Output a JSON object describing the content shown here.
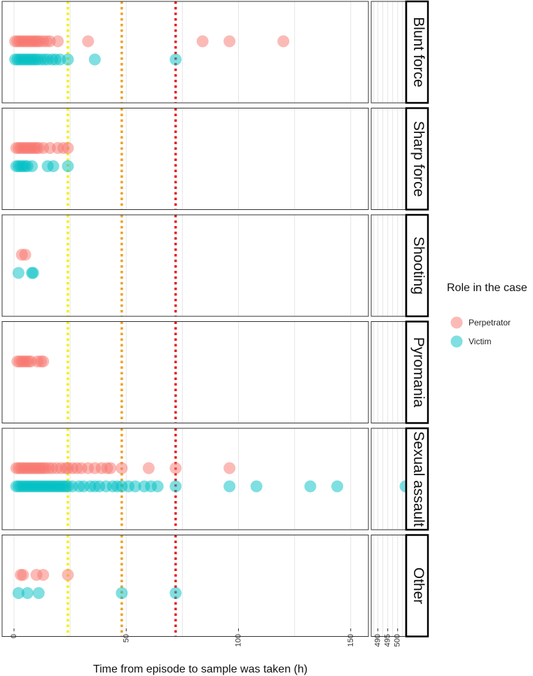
{
  "chart_data": {
    "type": "scatter",
    "xlabel": "Time from episode to sample was taken (h)",
    "ylabel": "",
    "xlim": [
      0,
      158
    ],
    "xlim_right": [
      487,
      504
    ],
    "xticks": [
      0,
      50,
      100,
      150
    ],
    "xticks_right": [
      490,
      495,
      500
    ],
    "vlines": [
      {
        "x": 24,
        "color": "#f5f000"
      },
      {
        "x": 48,
        "color": "#f0a020"
      },
      {
        "x": 72,
        "color": "#e41a1c"
      }
    ],
    "grid": true,
    "legend": {
      "title": "Role in the case",
      "position": "right",
      "entries": [
        {
          "name": "Perpetrator",
          "color": "#f8766d"
        },
        {
          "name": "Victim",
          "color": "#00bfc4"
        }
      ]
    },
    "facets": [
      {
        "label": "Blunt force",
        "series": [
          {
            "name": "Perpetrator",
            "x": [
              0.5,
              1.5,
              2.5,
              3.5,
              4.5,
              5.5,
              6.5,
              7.5,
              8.5,
              9.5,
              10.5,
              11.5,
              13,
              14.5,
              16,
              19.5,
              33,
              84,
              96,
              120
            ]
          },
          {
            "name": "Victim",
            "x": [
              0.5,
              1.5,
              2.5,
              3.5,
              4.5,
              5.5,
              6.5,
              7.5,
              8.5,
              9.5,
              10.5,
              12,
              13.5,
              15,
              17,
              18.5,
              20.5,
              24,
              36,
              72
            ]
          }
        ]
      },
      {
        "label": "Sharp force",
        "series": [
          {
            "name": "Perpetrator",
            "x": [
              1,
              2,
              3,
              4,
              5,
              6,
              7,
              8,
              9,
              10,
              11,
              13,
              16,
              19.5,
              22,
              24
            ]
          },
          {
            "name": "Victim",
            "x": [
              1,
              2,
              3,
              4,
              5,
              6,
              8,
              15,
              17.5,
              24
            ]
          }
        ]
      },
      {
        "label": "Shooting",
        "series": [
          {
            "name": "Perpetrator",
            "x": [
              3.5,
              5
            ]
          },
          {
            "name": "Victim",
            "x": [
              2,
              8,
              8.5
            ]
          }
        ]
      },
      {
        "label": "Pyromania",
        "series": [
          {
            "name": "Perpetrator",
            "x": [
              1.5,
              2.5,
              3.5,
              4.5,
              5.5,
              6.5,
              7.5,
              10.5,
              12,
              13
            ]
          },
          {
            "name": "Victim",
            "x": []
          }
        ]
      },
      {
        "label": "Sexual assault",
        "series": [
          {
            "name": "Perpetrator",
            "x": [
              1,
              2,
              3,
              4,
              5,
              6,
              7,
              8,
              9,
              10,
              11,
              12,
              13,
              14,
              15.5,
              17,
              19,
              21,
              23,
              24,
              26,
              28,
              30,
              33,
              36,
              39,
              41.5,
              43,
              48,
              60,
              72,
              96
            ]
          },
          {
            "name": "Victim",
            "x": [
              1,
              2,
              3,
              4,
              5,
              6,
              7,
              8,
              9,
              10,
              11,
              12,
              13,
              14,
              15,
              16,
              17,
              18,
              19,
              20,
              21,
              22,
              23,
              24,
              26,
              29,
              31,
              34,
              36,
              38,
              41,
              44,
              46,
              48,
              51,
              54,
              58,
              61,
              64,
              72,
              96,
              108,
              132,
              144,
              504
            ]
          }
        ]
      },
      {
        "label": "Other",
        "series": [
          {
            "name": "Perpetrator",
            "x": [
              3,
              4,
              10,
              13,
              24
            ]
          },
          {
            "name": "Victim",
            "x": [
              2,
              6,
              11,
              48,
              72
            ]
          }
        ]
      }
    ]
  }
}
